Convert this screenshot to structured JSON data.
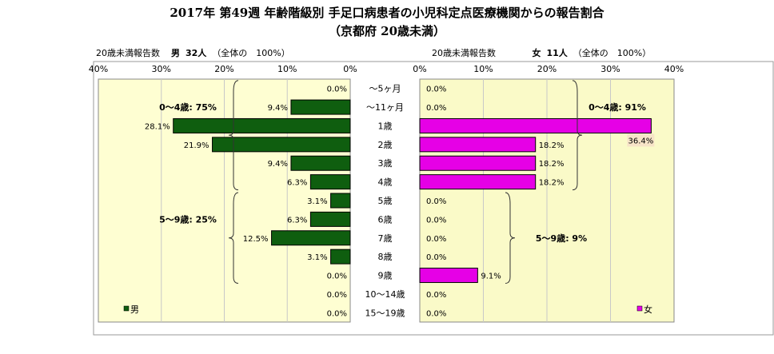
{
  "title_line1": "2017年 第49週 年齢階級別 手足口病患者の小児科定点医療機関からの報告割合",
  "title_line2": "（京都府 20歳未満）",
  "left_header": {
    "label": "20歳未満報告数",
    "sex": "男",
    "count": "32人",
    "note": "（全体の　100%）"
  },
  "right_header": {
    "label": "20歳未満報告数",
    "sex": "女",
    "count": "11人",
    "note": "（全体の　100%）"
  },
  "colors": {
    "male": "#0f5e0f",
    "female": "#e600e6",
    "left_bg": "#fefed2",
    "right_bg": "#fafac8"
  },
  "chart_data": [
    {
      "type": "bar",
      "orientation": "horizontal-reversed",
      "categories": [
        "～5ヶ月",
        "～11ヶ月",
        "1歳",
        "2歳",
        "3歳",
        "4歳",
        "5歳",
        "6歳",
        "7歳",
        "8歳",
        "9歳",
        "10～14歳",
        "15～19歳"
      ],
      "series": [
        {
          "name": "男",
          "values": [
            0.0,
            9.4,
            28.1,
            21.9,
            9.4,
            6.3,
            3.1,
            6.3,
            12.5,
            3.1,
            0.0,
            0.0,
            0.0
          ]
        }
      ],
      "value_labels": [
        "0.0%",
        "9.4%",
        "28.1%",
        "21.9%",
        "9.4%",
        "6.3%",
        "3.1%",
        "6.3%",
        "12.5%",
        "3.1%",
        "0.0%",
        "0.0%",
        "0.0%"
      ],
      "xlim": [
        0,
        40
      ],
      "ticks": [
        "40%",
        "30%",
        "20%",
        "10%",
        "0%"
      ],
      "groups": [
        {
          "label": "0～4歳: 75%"
        },
        {
          "label": "5～9歳: 25%"
        }
      ],
      "legend": "男"
    },
    {
      "type": "bar",
      "orientation": "horizontal",
      "categories": [
        "～5ヶ月",
        "～11ヶ月",
        "1歳",
        "2歳",
        "3歳",
        "4歳",
        "5歳",
        "6歳",
        "7歳",
        "8歳",
        "9歳",
        "10～14歳",
        "15～19歳"
      ],
      "series": [
        {
          "name": "女",
          "values": [
            0.0,
            0.0,
            36.4,
            18.2,
            18.2,
            18.2,
            0.0,
            0.0,
            0.0,
            0.0,
            9.1,
            0.0,
            0.0
          ]
        }
      ],
      "value_labels": [
        "0.0%",
        "0.0%",
        "36.4%",
        "18.2%",
        "18.2%",
        "18.2%",
        "0.0%",
        "0.0%",
        "0.0%",
        "0.0%",
        "9.1%",
        "0.0%",
        "0.0%"
      ],
      "xlim": [
        0,
        40
      ],
      "ticks": [
        "0%",
        "10%",
        "20%",
        "30%",
        "40%"
      ],
      "groups": [
        {
          "label": "0～4歳: 91%"
        },
        {
          "label": "5～9歳: 9%"
        }
      ],
      "legend": "女"
    }
  ]
}
